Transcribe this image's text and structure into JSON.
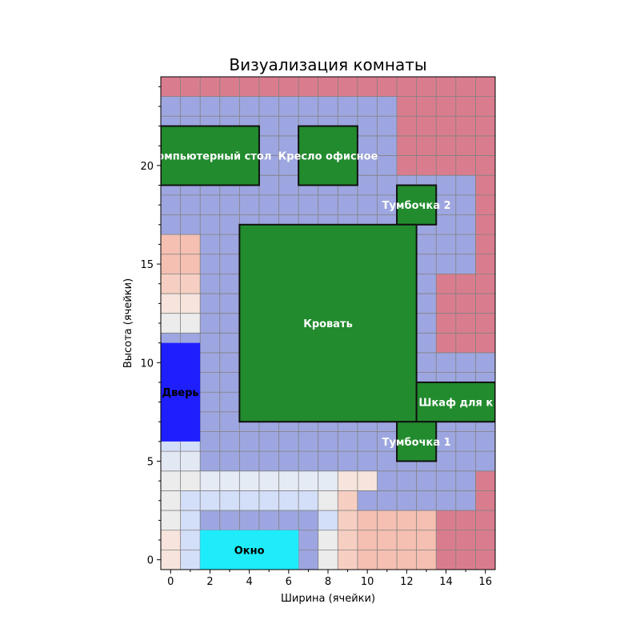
{
  "chart_data": {
    "type": "heatmap",
    "title": "Визуализация комнаты",
    "xlabel": "Ширина (ячейки)",
    "ylabel": "Высота (ячейки)",
    "grid": true,
    "xlim": [
      -0.5,
      16.5
    ],
    "ylim": [
      -0.5,
      24.5
    ],
    "x_ticks": [
      0,
      2,
      4,
      6,
      8,
      10,
      12,
      14,
      16
    ],
    "y_ticks": [
      0,
      5,
      10,
      15,
      20
    ],
    "colors": {
      "free": "#9da6e0",
      "far": "#d97d8e",
      "furniture": "#228b2e",
      "door": "#1e1eff",
      "window": "#1fecfa"
    },
    "cells_top_to_bottom": [
      "RRRRRRRRRRRRRRRRR",
      "BBBBBBBBBBBBRRRRR",
      "BBBBBBBBBBBBRRRRR",
      "BBBBBBBBBBBBRRRRR",
      "BBBBBBBBBBBBRRRRR",
      "BBBBBBBBBBBBBBBBR",
      "BBBBBBBBBBBBBBBBR",
      "BBBBBBBBBBBBBBBBR",
      "ooBBBBBBBBBBBBBBR",
      "ooBBBBBBBBBBBBBBR",
      "ppBBBBBBBBBBBBRRR",
      "qqBBBBBBBBBBBBRRR",
      "ggBBBBBBBBBBBBRRR",
      "BBBBBBBBBBBBBBRRR",
      "BBBBBBBBBBBBBBBBB",
      "BBBBBBBBBBBBBBBBB",
      "BBBBBBBBBBBBBBBBB",
      "BBBBBBBBBBBBBBBBB",
      "llBBBBBBBBBBBBBBB",
      "kkBBBBBBBBBBBBBBB",
      "ggeeeeeeeqqBBBBBR",
      "glllllllgpBBBBBBR",
      "glBBBBBBlpooooRRR",
      "qlBBBBBBgpooooRRR",
      "qlBBBBBBgpooooRRR"
    ],
    "cell_colors": {
      "R": "#d97d8e",
      "B": "#9da6e0",
      "o": "#f5bfb1",
      "p": "#f7cfc2",
      "q": "#f6e4dd",
      "g": "#ececec",
      "l": "#d3def8",
      "k": "#e3e8f5",
      "e": "#e5ebf5"
    },
    "furniture": [
      {
        "name": "Компьютерный стол",
        "x0": 0,
        "x1": 5,
        "y0": 19,
        "y1": 22,
        "color": "#228b2e",
        "label_color": "#ffffff"
      },
      {
        "name": "Кресло офисное",
        "x0": 7,
        "x1": 10,
        "y0": 19,
        "y1": 22,
        "color": "#228b2e",
        "label_color": "#ffffff"
      },
      {
        "name": "Тумбочка 2",
        "x0": 12,
        "x1": 14,
        "y0": 17,
        "y1": 19,
        "color": "#228b2e",
        "label_color": "#ffffff"
      },
      {
        "name": "Кровать",
        "x0": 4,
        "x1": 13,
        "y0": 7,
        "y1": 17,
        "color": "#228b2e",
        "label_color": "#ffffff"
      },
      {
        "name": "Шкаф для к",
        "x0": 13,
        "x1": 17,
        "y0": 7,
        "y1": 9,
        "color": "#228b2e",
        "label_color": "#ffffff"
      },
      {
        "name": "Тумбочка 1",
        "x0": 12,
        "x1": 14,
        "y0": 5,
        "y1": 7,
        "color": "#228b2e",
        "label_color": "#ffffff"
      },
      {
        "name": "Дверь",
        "x0": 0,
        "x1": 2,
        "y0": 6,
        "y1": 11,
        "color": "#1e1eff",
        "label_color": "#000000"
      },
      {
        "name": "Окно",
        "x0": 2,
        "x1": 7,
        "y0": -0.5,
        "y1": 1.5,
        "color": "#1fecfa",
        "label_color": "#000000"
      }
    ]
  }
}
